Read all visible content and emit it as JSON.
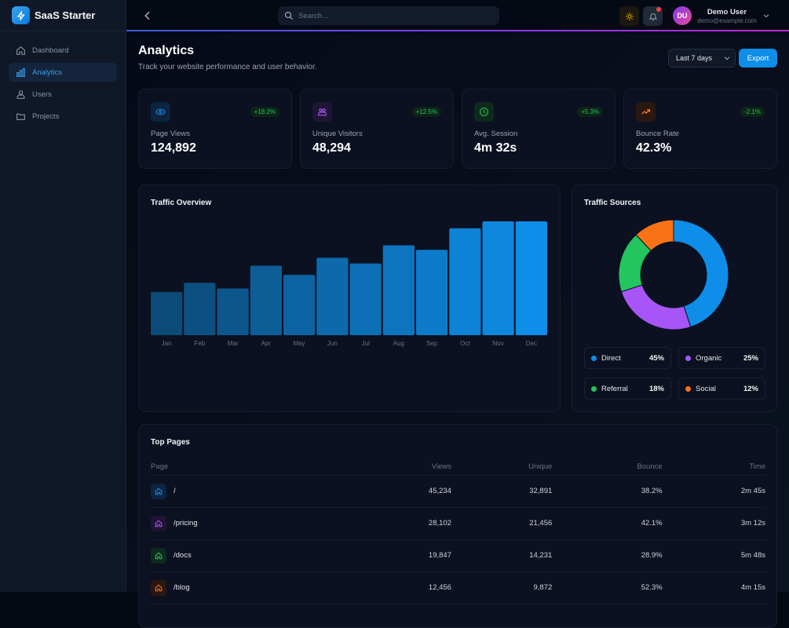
{
  "app": {
    "name": "SaaS Starter"
  },
  "sidebar": {
    "items": [
      {
        "label": "Dashboard",
        "icon": "home-icon",
        "active": false
      },
      {
        "label": "Analytics",
        "icon": "bar-chart-icon",
        "active": true
      },
      {
        "label": "Users",
        "icon": "users-icon",
        "active": false
      },
      {
        "label": "Projects",
        "icon": "folder-icon",
        "active": false
      }
    ]
  },
  "header": {
    "search_placeholder": "Search...",
    "user": {
      "initials": "DU",
      "name": "Demo User",
      "email": "demo@example.com"
    }
  },
  "page": {
    "title": "Analytics",
    "subtitle": "Track your website performance and user behavior.",
    "range_selected": "Last 7 days",
    "export_label": "Export"
  },
  "stats": [
    {
      "label": "Page Views",
      "value": "124,892",
      "change": "+18.2%",
      "icon": "eye-icon",
      "color": "#1d8fe6",
      "bg": "#0c2440"
    },
    {
      "label": "Unique Visitors",
      "value": "48,294",
      "change": "+12.5%",
      "icon": "users-icon",
      "color": "#a855f7",
      "bg": "#1e1535"
    },
    {
      "label": "Avg. Session",
      "value": "4m 32s",
      "change": "+5.3%",
      "icon": "clock-icon",
      "color": "#22c55e",
      "bg": "#0e2a1c"
    },
    {
      "label": "Bounce Rate",
      "value": "42.3%",
      "change": "-2.1%",
      "icon": "trending-up-icon",
      "color": "#f97316",
      "bg": "#2a1810"
    }
  ],
  "traffic_overview": {
    "title": "Traffic Overview"
  },
  "traffic_sources": {
    "title": "Traffic Sources",
    "items": [
      {
        "name": "Direct",
        "value": "45%",
        "color": "#0e8ee9"
      },
      {
        "name": "Organic",
        "value": "25%",
        "color": "#a855f7"
      },
      {
        "name": "Referral",
        "value": "18%",
        "color": "#22c55e"
      },
      {
        "name": "Social",
        "value": "12%",
        "color": "#f97316"
      }
    ]
  },
  "top_pages": {
    "title": "Top Pages",
    "columns": [
      "Page",
      "Views",
      "Unique",
      "Bounce",
      "Time"
    ],
    "rows": [
      {
        "page": "/",
        "views": "45,234",
        "unique": "32,891",
        "bounce": "38.2%",
        "time": "2m 45s",
        "color": "#1d8fe6",
        "bg": "#0c2440"
      },
      {
        "page": "/pricing",
        "views": "28,102",
        "unique": "21,456",
        "bounce": "42.1%",
        "time": "3m 12s",
        "color": "#a855f7",
        "bg": "#1e1535"
      },
      {
        "page": "/docs",
        "views": "19,847",
        "unique": "14,231",
        "bounce": "28.9%",
        "time": "5m 48s",
        "color": "#22c55e",
        "bg": "#0e2a1c"
      },
      {
        "page": "/blog",
        "views": "12,456",
        "unique": "9,872",
        "bounce": "52.3%",
        "time": "4m 15s",
        "color": "#f97316",
        "bg": "#2a1810"
      }
    ]
  },
  "chart_data": [
    {
      "type": "bar",
      "title": "Traffic Overview",
      "categories": [
        "Jan",
        "Feb",
        "Mar",
        "Apr",
        "May",
        "Jun",
        "Jul",
        "Aug",
        "Sep",
        "Oct",
        "Nov",
        "Dec"
      ],
      "values": [
        38,
        46,
        41,
        61,
        53,
        68,
        63,
        79,
        75,
        94,
        100,
        100
      ],
      "xlabel": "",
      "ylabel": "",
      "ylim": [
        0,
        100
      ],
      "grid": false
    },
    {
      "type": "pie",
      "title": "Traffic Sources",
      "categories": [
        "Direct",
        "Organic",
        "Referral",
        "Social"
      ],
      "values": [
        45,
        25,
        18,
        12
      ],
      "colors": [
        "#0e8ee9",
        "#a855f7",
        "#22c55e",
        "#f97316"
      ],
      "legend": "bottom"
    }
  ]
}
